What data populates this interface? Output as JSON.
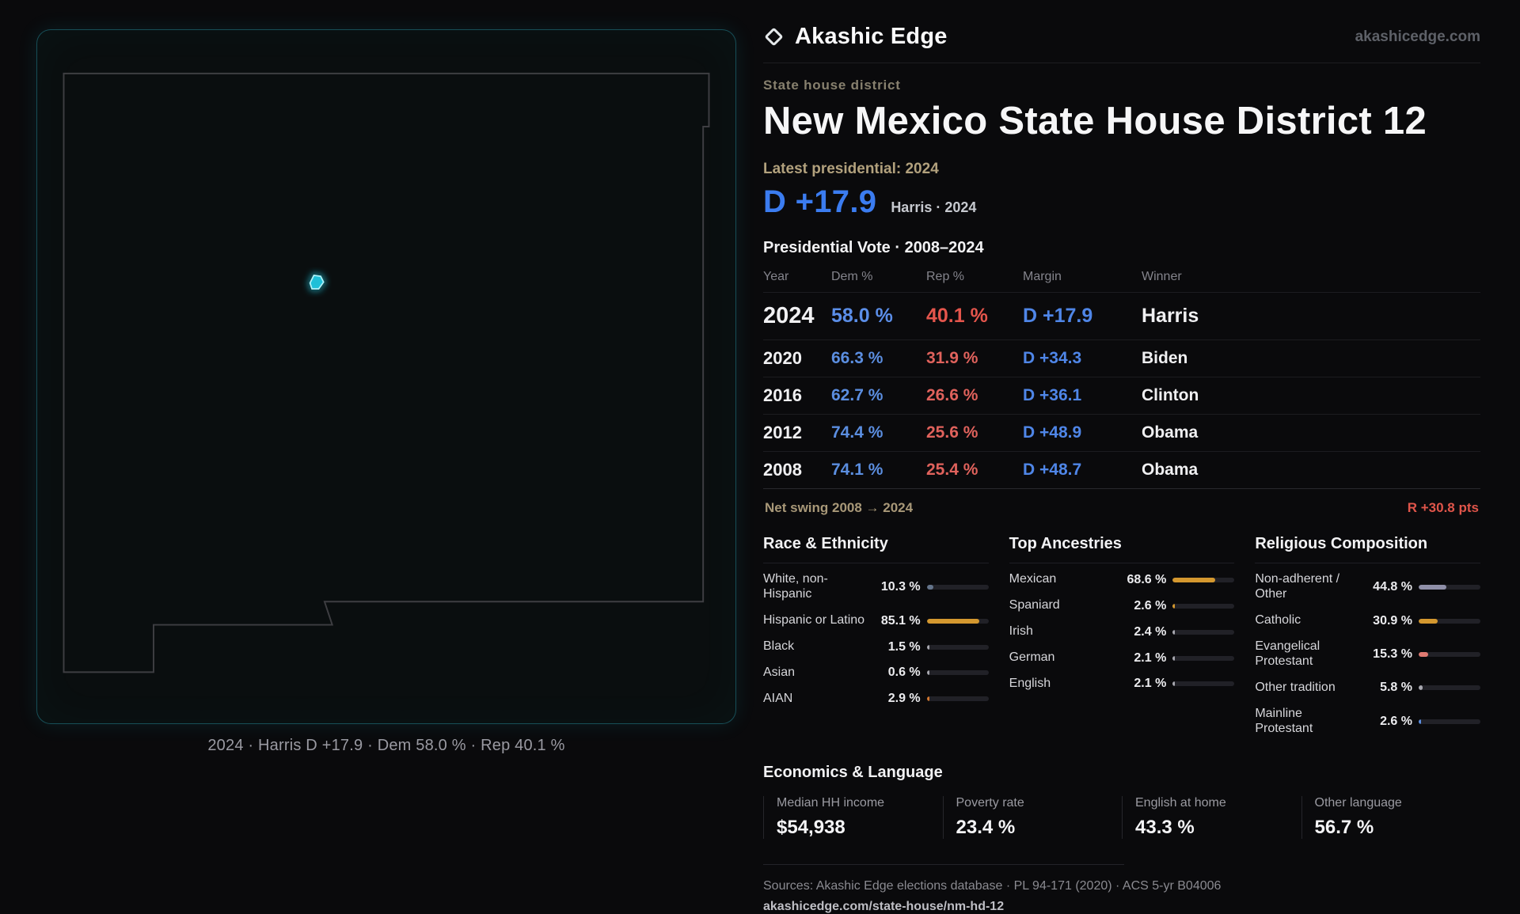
{
  "brand": {
    "name": "Akashic Edge",
    "domain": "akashicedge.com",
    "icon": "diamond-outline"
  },
  "colors": {
    "dem_blue": "#4f86e8",
    "rep_red": "#e05c55",
    "accent_cyan": "#22d3ee",
    "amber": "#d4982f"
  },
  "page": {
    "kicker": "State house district",
    "title": "New Mexico State House District 12",
    "latest_label": "Latest presidential: 2024",
    "headline_margin": "D +17.9",
    "headline_note": "Harris · 2024"
  },
  "map": {
    "state": "New Mexico",
    "highlight_color": "#22d3ee",
    "caption": "2024 · Harris D +17.9 · Dem 58.0 % · Rep 40.1 %"
  },
  "vote_table": {
    "title": "Presidential Vote · 2008–2024",
    "columns": [
      "Year",
      "Dem %",
      "Rep %",
      "Margin",
      "Winner"
    ],
    "rows": [
      {
        "year": "2024",
        "dem": "58.0 %",
        "rep": "40.1 %",
        "margin": "D +17.9",
        "winner": "Harris",
        "featured": true
      },
      {
        "year": "2020",
        "dem": "66.3 %",
        "rep": "31.9 %",
        "margin": "D +34.3",
        "winner": "Biden",
        "featured": false
      },
      {
        "year": "2016",
        "dem": "62.7 %",
        "rep": "26.6 %",
        "margin": "D +36.1",
        "winner": "Clinton",
        "featured": false
      },
      {
        "year": "2012",
        "dem": "74.4 %",
        "rep": "25.6 %",
        "margin": "D +48.9",
        "winner": "Obama",
        "featured": false
      },
      {
        "year": "2008",
        "dem": "74.1 %",
        "rep": "25.4 %",
        "margin": "D +48.7",
        "winner": "Obama",
        "featured": false
      }
    ]
  },
  "net_swing": {
    "label": "Net swing 2008 → 2024",
    "value": "R +30.8 pts"
  },
  "demographics": [
    {
      "title": "Race & Ethnicity",
      "rows": [
        {
          "label": "White, non-Hispanic",
          "value": "10.3 %",
          "pct": 10.3,
          "color": "#64748b"
        },
        {
          "label": "Hispanic or Latino",
          "value": "85.1 %",
          "pct": 85.1,
          "color": "#d4982f"
        },
        {
          "label": "Black",
          "value": "1.5 %",
          "pct": 1.5,
          "color": "#a8a8b0"
        },
        {
          "label": "Asian",
          "value": "0.6 %",
          "pct": 0.6,
          "color": "#a8a8b0"
        },
        {
          "label": "AIAN",
          "value": "2.9 %",
          "pct": 2.9,
          "color": "#d4772f"
        }
      ]
    },
    {
      "title": "Top Ancestries",
      "rows": [
        {
          "label": "Mexican",
          "value": "68.6 %",
          "pct": 68.6,
          "color": "#d4982f"
        },
        {
          "label": "Spaniard",
          "value": "2.6 %",
          "pct": 2.6,
          "color": "#d4982f"
        },
        {
          "label": "Irish",
          "value": "2.4 %",
          "pct": 2.4,
          "color": "#a8a8b0"
        },
        {
          "label": "German",
          "value": "2.1 %",
          "pct": 2.1,
          "color": "#a8a8b0"
        },
        {
          "label": "English",
          "value": "2.1 %",
          "pct": 2.1,
          "color": "#a8a8b0"
        }
      ]
    },
    {
      "title": "Religious Composition",
      "rows": [
        {
          "label": "Non-adherent / Other",
          "value": "44.8 %",
          "pct": 44.8,
          "color": "#8f8fa8"
        },
        {
          "label": "Catholic",
          "value": "30.9 %",
          "pct": 30.9,
          "color": "#d4982f"
        },
        {
          "label": "Evangelical Protestant",
          "value": "15.3 %",
          "pct": 15.3,
          "color": "#e07a72"
        },
        {
          "label": "Other tradition",
          "value": "5.8 %",
          "pct": 5.8,
          "color": "#a8a8b0"
        },
        {
          "label": "Mainline Protestant",
          "value": "2.6 %",
          "pct": 2.6,
          "color": "#5b8ee0"
        }
      ]
    }
  ],
  "economics": {
    "title": "Economics & Language",
    "stats": [
      {
        "label": "Median HH income",
        "value": "$54,938"
      },
      {
        "label": "Poverty rate",
        "value": "23.4 %"
      },
      {
        "label": "English at home",
        "value": "43.3 %"
      },
      {
        "label": "Other language",
        "value": "56.7 %"
      }
    ]
  },
  "footer": {
    "sources": "Sources: Akashic Edge elections database · PL 94-171 (2020) · ACS 5-yr B04006",
    "permalink": "akashicedge.com/state-house/nm-hd-12"
  }
}
